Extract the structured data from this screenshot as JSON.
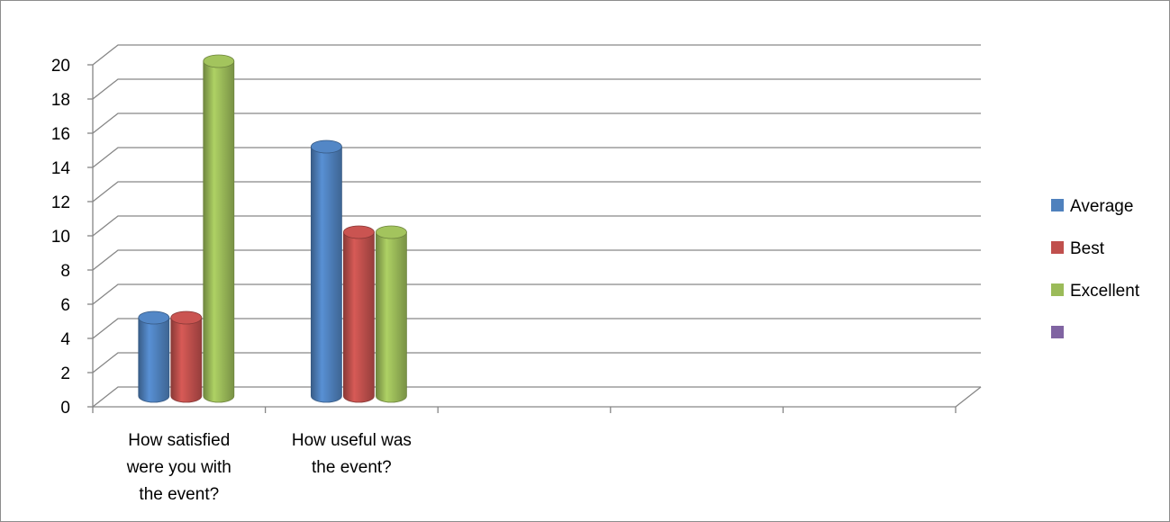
{
  "chart_data": {
    "type": "bar",
    "categories": [
      "How satisfied were you with the event?",
      "How useful was the event?",
      "",
      "",
      ""
    ],
    "category_lines": [
      [
        "How satisfied",
        "were you with",
        "the event?"
      ],
      [
        "How useful was",
        "the event?"
      ],
      [],
      [],
      []
    ],
    "series": [
      {
        "name": "Average",
        "color": "#4f81bd",
        "values": [
          5,
          15,
          null,
          null,
          null
        ]
      },
      {
        "name": "Best",
        "color": "#c0504d",
        "values": [
          5,
          10,
          null,
          null,
          null
        ]
      },
      {
        "name": "Excellent",
        "color": "#9bbb59",
        "values": [
          20,
          10,
          null,
          null,
          null
        ]
      },
      {
        "name": "",
        "color": "#8064a2",
        "values": [
          null,
          null,
          null,
          null,
          null
        ]
      }
    ],
    "ylim": [
      0,
      20
    ],
    "yticks": [
      0,
      2,
      4,
      6,
      8,
      10,
      12,
      14,
      16,
      18,
      20
    ],
    "title": "",
    "xlabel": "",
    "ylabel": "",
    "grid": true,
    "style": "3d-cylinder",
    "legend_position": "right"
  }
}
